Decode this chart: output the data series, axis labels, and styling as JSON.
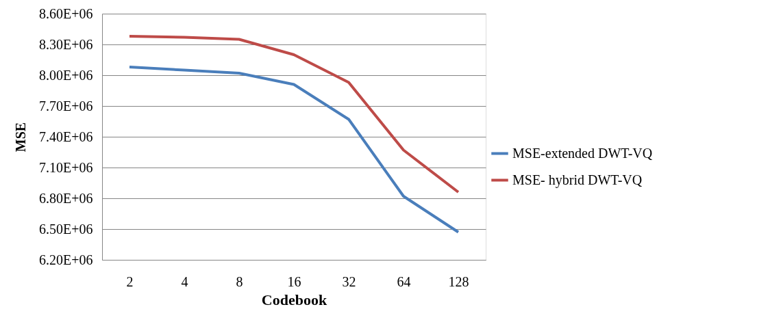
{
  "chart_data": {
    "type": "line",
    "xlabel": "Codebook",
    "ylabel": "MSE",
    "categories": [
      "2",
      "4",
      "8",
      "16",
      "32",
      "64",
      "128"
    ],
    "series": [
      {
        "name": "MSE-extended DWT-VQ",
        "color": "#4a7ebb",
        "values": [
          8080000,
          8050000,
          8020000,
          7910000,
          7570000,
          6820000,
          6470000
        ]
      },
      {
        "name": "MSE- hybrid DWT-VQ",
        "color": "#be4b48",
        "values": [
          8380000,
          8370000,
          8350000,
          8200000,
          7930000,
          7270000,
          6860000
        ]
      }
    ],
    "ylim": [
      6200000,
      8600000
    ],
    "yticks": [
      {
        "value": 6200000,
        "label": "6.20E+06"
      },
      {
        "value": 6500000,
        "label": "6.50E+06"
      },
      {
        "value": 6800000,
        "label": "6.80E+06"
      },
      {
        "value": 7100000,
        "label": "7.10E+06"
      },
      {
        "value": 7400000,
        "label": "7.40E+06"
      },
      {
        "value": 7700000,
        "label": "7.70E+06"
      },
      {
        "value": 8000000,
        "label": "8.00E+06"
      },
      {
        "value": 8300000,
        "label": "8.30E+06"
      },
      {
        "value": 8600000,
        "label": "8.60E+06"
      }
    ],
    "grid": "y",
    "legend": "right",
    "marker": "none",
    "line_style": "solid"
  }
}
